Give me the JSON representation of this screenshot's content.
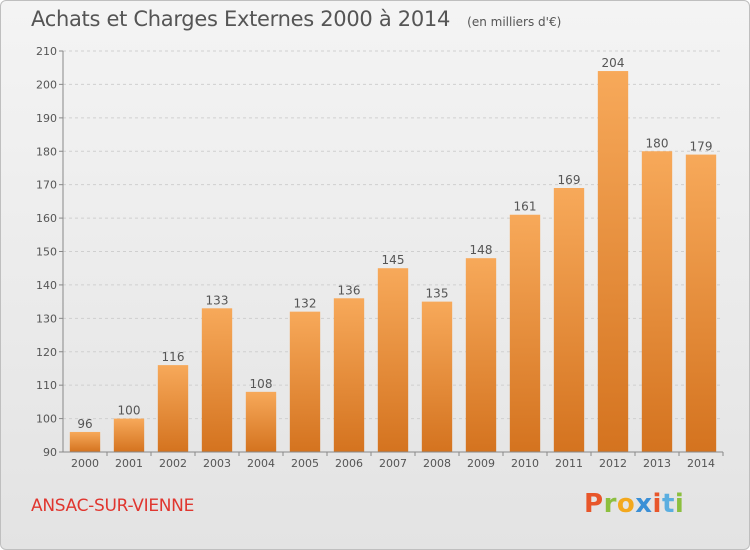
{
  "header": {
    "title": "Achats et Charges Externes 2000 à 2014",
    "unit": "(en milliers d'€)"
  },
  "footer": {
    "commune": "ANSAC-SUR-VIENNE",
    "logo": "Proxiti",
    "logo_colors": [
      "#e8562a",
      "#8cbf3f",
      "#f3a81d",
      "#3a8fd6",
      "#e8562a",
      "#5aaee0",
      "#8cbf3f"
    ]
  },
  "colors": {
    "bar_light": "#f7a95a",
    "bar_dark": "#d4731f",
    "text": "#555555",
    "grid": "#cfcfcf"
  },
  "chart_data": {
    "type": "bar",
    "categories": [
      "2000",
      "2001",
      "2002",
      "2003",
      "2004",
      "2005",
      "2006",
      "2007",
      "2008",
      "2009",
      "2010",
      "2011",
      "2012",
      "2013",
      "2014"
    ],
    "values": [
      96,
      100,
      116,
      133,
      108,
      132,
      136,
      145,
      135,
      148,
      161,
      169,
      204,
      180,
      179
    ],
    "title": "Achats et Charges Externes 2000 à 2014",
    "ylim": [
      90,
      210
    ],
    "yticks": [
      90,
      100,
      110,
      120,
      130,
      140,
      150,
      160,
      170,
      180,
      190,
      200,
      210
    ],
    "grid": true,
    "data_labels": true
  }
}
